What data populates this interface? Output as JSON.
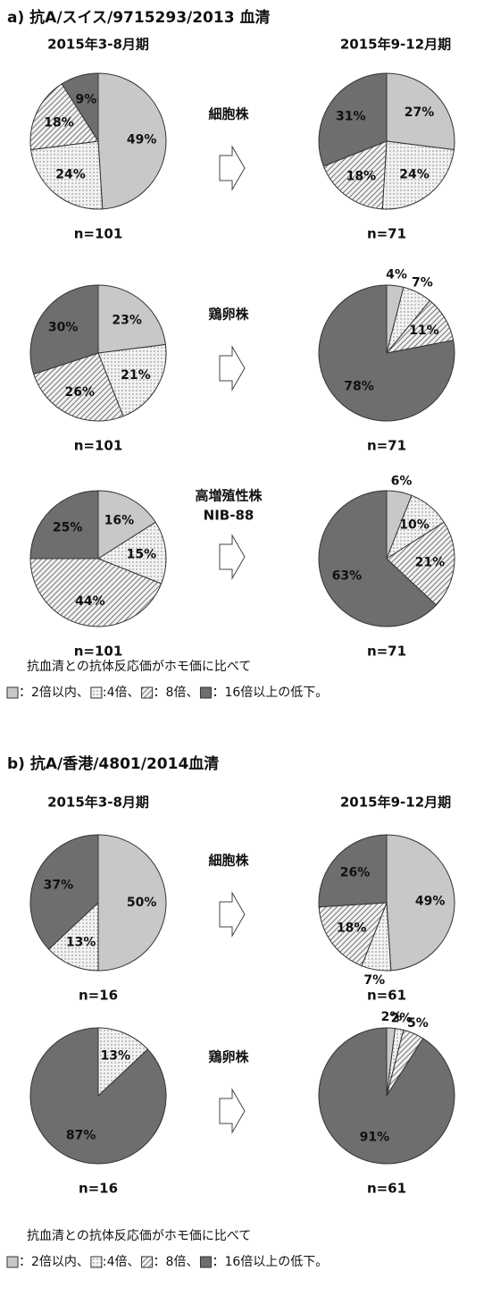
{
  "sections": [
    {
      "title": "a) 抗A/スイス/9715293/2013 血清",
      "periods": [
        "2015年3-8月期",
        "2015年9-12月期"
      ],
      "strains": [
        [
          "細胞株"
        ],
        [
          "鶏卵株"
        ],
        [
          "高増殖性株",
          "NIB-88"
        ]
      ],
      "note": "抗血清との抗体反応価がホモ価に比べて",
      "legend": [
        "：2倍以内、",
        ":4倍、",
        "：8倍、",
        "：16倍以上の低下。"
      ]
    },
    {
      "title": "b) 抗A/香港/4801/2014血清",
      "periods": [
        "2015年3-8月期",
        "2015年9-12月期"
      ],
      "strains": [
        [
          "細胞株"
        ],
        [
          "鶏卵株"
        ]
      ],
      "note": "抗血清との抗体反応価がホモ価に比べて",
      "legend": [
        "：2倍以内、",
        ":4倍、",
        "：8倍、",
        "：16倍以上の低下。"
      ]
    }
  ],
  "chart_data": [
    {
      "type": "pie",
      "annotation": "n=101",
      "values": [
        49,
        24,
        18,
        9
      ],
      "value_labels": [
        "49%",
        "24%",
        "18%",
        "9%"
      ],
      "colors": [
        "#c8c8c8",
        "#f2f2f2",
        "#f2f2f2",
        "#6e6e6e"
      ],
      "patterns": [
        "none",
        "dots",
        "hatch",
        "none"
      ]
    },
    {
      "type": "pie",
      "annotation": "n=71",
      "values": [
        27,
        24,
        18,
        31
      ],
      "value_labels": [
        "27%",
        "24%",
        "18%",
        "31%"
      ],
      "colors": [
        "#c8c8c8",
        "#f2f2f2",
        "#f2f2f2",
        "#6e6e6e"
      ],
      "patterns": [
        "none",
        "dots",
        "hatch",
        "none"
      ]
    },
    {
      "type": "pie",
      "annotation": "n=101",
      "values": [
        23,
        21,
        26,
        30
      ],
      "value_labels": [
        "23%",
        "21%",
        "26%",
        "30%"
      ],
      "colors": [
        "#c8c8c8",
        "#f2f2f2",
        "#f2f2f2",
        "#6e6e6e"
      ],
      "patterns": [
        "none",
        "dots",
        "hatch",
        "none"
      ]
    },
    {
      "type": "pie",
      "annotation": "n=71",
      "values": [
        4,
        7,
        11,
        78
      ],
      "value_labels": [
        "4%",
        "7%",
        "11%",
        "78%"
      ],
      "colors": [
        "#c8c8c8",
        "#f2f2f2",
        "#f2f2f2",
        "#6e6e6e"
      ],
      "patterns": [
        "none",
        "dots",
        "hatch",
        "none"
      ]
    },
    {
      "type": "pie",
      "annotation": "n=101",
      "values": [
        16,
        15,
        44,
        25
      ],
      "value_labels": [
        "16%",
        "15%",
        "44%",
        "25%"
      ],
      "colors": [
        "#c8c8c8",
        "#f2f2f2",
        "#f2f2f2",
        "#6e6e6e"
      ],
      "patterns": [
        "none",
        "dots",
        "hatch",
        "none"
      ]
    },
    {
      "type": "pie",
      "annotation": "n=71",
      "values": [
        6,
        10,
        21,
        63
      ],
      "value_labels": [
        "6%",
        "10%",
        "21%",
        "63%"
      ],
      "colors": [
        "#c8c8c8",
        "#f2f2f2",
        "#f2f2f2",
        "#6e6e6e"
      ],
      "patterns": [
        "none",
        "dots",
        "hatch",
        "none"
      ]
    },
    {
      "type": "pie",
      "annotation": "n=16",
      "values": [
        50,
        13,
        37
      ],
      "value_labels": [
        "50%",
        "13%",
        "37%"
      ],
      "colors": [
        "#c8c8c8",
        "#f2f2f2",
        "#6e6e6e"
      ],
      "patterns": [
        "none",
        "dots",
        "none"
      ]
    },
    {
      "type": "pie",
      "annotation": "n=61",
      "values": [
        49,
        7,
        18,
        26
      ],
      "value_labels": [
        "49%",
        "7%",
        "18%",
        "26%"
      ],
      "colors": [
        "#c8c8c8",
        "#f2f2f2",
        "#f2f2f2",
        "#6e6e6e"
      ],
      "patterns": [
        "none",
        "dots",
        "hatch",
        "none"
      ]
    },
    {
      "type": "pie",
      "annotation": "n=16",
      "values": [
        13,
        87
      ],
      "value_labels": [
        "13%",
        "87%"
      ],
      "colors": [
        "#f2f2f2",
        "#6e6e6e"
      ],
      "patterns": [
        "dots",
        "none"
      ]
    },
    {
      "type": "pie",
      "annotation": "n=61",
      "values": [
        2,
        2,
        5,
        91
      ],
      "value_labels": [
        "2%",
        "2%",
        "5%",
        "91%"
      ],
      "colors": [
        "#c8c8c8",
        "#f2f2f2",
        "#f2f2f2",
        "#6e6e6e"
      ],
      "patterns": [
        "none",
        "dots",
        "hatch",
        "none"
      ]
    }
  ]
}
